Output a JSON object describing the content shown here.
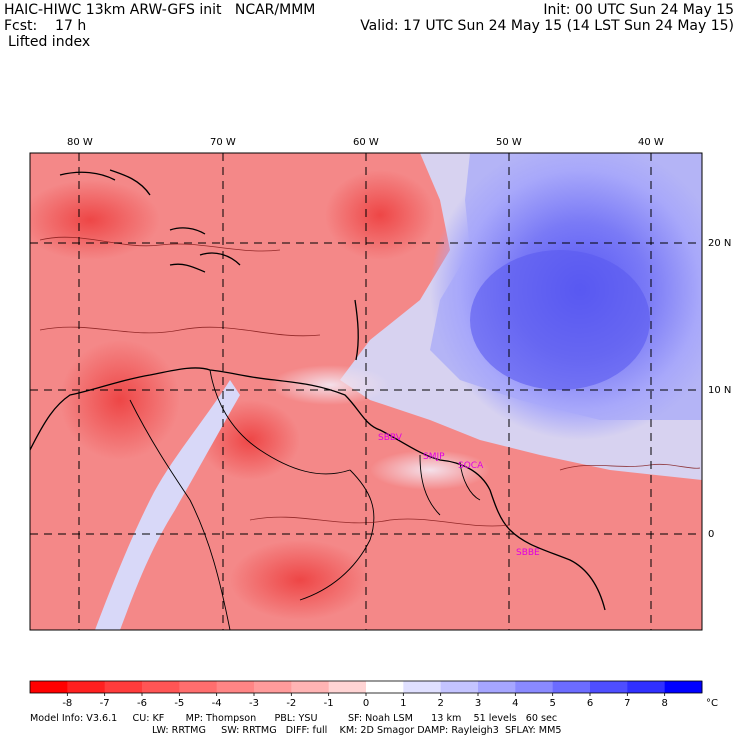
{
  "header": {
    "left_line1": "HAIC-HIWC 13km ARW-GFS init   NCAR/MMM",
    "left_line2": "Fcst:    17 h",
    "left_line3": "Lifted index",
    "right_line1": "Init: 00 UTC Sun 24 May 15",
    "right_line2": "Valid: 17 UTC Sun 24 May 15 (14 LST Sun 24 May 15)"
  },
  "axes": {
    "lon_labels": [
      "80 W",
      "70 W",
      "60 W",
      "50 W",
      "40 W"
    ],
    "lat_labels": [
      "20 N",
      "10 N",
      "0"
    ]
  },
  "stations": [
    "SBBV",
    "SMJP",
    "SOCA",
    "SBBE"
  ],
  "colorbar": {
    "ticks": [
      "-8",
      "-7",
      "-6",
      "-5",
      "-4",
      "-3",
      "-2",
      "-1",
      "0",
      "1",
      "2",
      "3",
      "4",
      "5",
      "6",
      "7",
      "8"
    ],
    "unit": "°C",
    "colors": [
      "#ff0000",
      "#ff2020",
      "#ff3c3c",
      "#ff5555",
      "#ff6e6e",
      "#ff8585",
      "#ff9b9b",
      "#ffb4b4",
      "#ffd4d4",
      "#ffffff",
      "#e0e0ff",
      "#c4c4ff",
      "#a6a6ff",
      "#8a8aff",
      "#6c6cff",
      "#4e4eff",
      "#3030ff",
      "#0000ff"
    ]
  },
  "model_info": {
    "line1": "Model Info: V3.6.1     CU: KF       MP: Thompson      PBL: YSU          SF: Noah LSM      13 km    51 levels   60 sec",
    "line2": "LW: RRTMG     SW: RRTMG   DIFF: full    KM: 2D Smagor DAMP: Rayleigh3  SFLAY: MM5"
  }
}
